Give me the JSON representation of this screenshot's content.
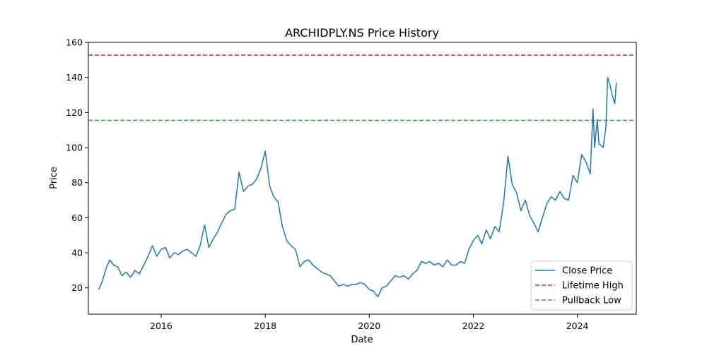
{
  "chart_data": {
    "type": "line",
    "title": "ARCHIDPLY.NS Price History",
    "xlabel": "Date",
    "ylabel": "Price",
    "xlim": [
      "2014-08-08",
      "2025-02-18"
    ],
    "ylim": [
      5,
      160
    ],
    "yticks": [
      20,
      40,
      60,
      80,
      100,
      120,
      140,
      160
    ],
    "xticks": [
      "2016",
      "2018",
      "2020",
      "2022",
      "2024"
    ],
    "grid": false,
    "legend_position": "lower-right",
    "series": [
      {
        "name": "Close Price",
        "color": "#1f77b4",
        "style": "solid",
        "x": [
          "2014-10-20",
          "2014-11-15",
          "2014-12-10",
          "2015-01-05",
          "2015-02-01",
          "2015-03-01",
          "2015-04-01",
          "2015-05-01",
          "2015-06-01",
          "2015-07-01",
          "2015-08-01",
          "2015-09-01",
          "2015-10-01",
          "2015-11-01",
          "2015-12-01",
          "2016-01-01",
          "2016-02-01",
          "2016-03-01",
          "2016-04-01",
          "2016-05-01",
          "2016-06-01",
          "2016-07-01",
          "2016-08-01",
          "2016-09-01",
          "2016-10-01",
          "2016-11-01",
          "2016-12-01",
          "2017-01-01",
          "2017-02-01",
          "2017-03-01",
          "2017-04-01",
          "2017-05-01",
          "2017-06-01",
          "2017-07-01",
          "2017-08-01",
          "2017-09-01",
          "2017-10-01",
          "2017-11-01",
          "2017-12-01",
          "2018-01-01",
          "2018-02-01",
          "2018-03-01",
          "2018-04-01",
          "2018-05-01",
          "2018-06-01",
          "2018-07-01",
          "2018-08-01",
          "2018-09-01",
          "2018-10-01",
          "2018-11-01",
          "2018-12-01",
          "2019-01-01",
          "2019-02-01",
          "2019-03-01",
          "2019-04-01",
          "2019-05-01",
          "2019-06-01",
          "2019-07-01",
          "2019-08-01",
          "2019-09-01",
          "2019-10-01",
          "2019-11-01",
          "2019-12-01",
          "2020-01-01",
          "2020-02-01",
          "2020-03-01",
          "2020-04-01",
          "2020-05-01",
          "2020-06-01",
          "2020-07-01",
          "2020-08-01",
          "2020-09-01",
          "2020-10-01",
          "2020-11-01",
          "2020-12-01",
          "2021-01-01",
          "2021-02-01",
          "2021-03-01",
          "2021-04-01",
          "2021-05-01",
          "2021-06-01",
          "2021-07-01",
          "2021-08-01",
          "2021-09-01",
          "2021-10-01",
          "2021-11-01",
          "2021-12-01",
          "2022-01-01",
          "2022-02-01",
          "2022-03-01",
          "2022-04-01",
          "2022-05-01",
          "2022-06-01",
          "2022-07-01",
          "2022-08-01",
          "2022-09-01",
          "2022-10-01",
          "2022-11-01",
          "2022-12-01",
          "2023-01-01",
          "2023-02-01",
          "2023-03-01",
          "2023-04-01",
          "2023-05-01",
          "2023-06-01",
          "2023-07-01",
          "2023-08-01",
          "2023-09-01",
          "2023-10-01",
          "2023-11-01",
          "2023-12-01",
          "2024-01-01",
          "2024-02-01",
          "2024-03-01",
          "2024-04-01",
          "2024-04-20",
          "2024-05-01",
          "2024-05-20",
          "2024-06-01",
          "2024-06-20",
          "2024-07-01",
          "2024-07-20",
          "2024-08-01",
          "2024-08-20",
          "2024-09-01",
          "2024-09-20",
          "2024-10-01"
        ],
        "y": [
          19,
          24,
          31,
          36,
          33,
          32,
          27,
          29,
          26,
          30,
          28,
          33,
          38,
          44,
          38,
          42,
          43,
          37,
          40,
          39,
          41,
          42,
          40,
          38,
          44,
          56,
          43,
          48,
          52,
          57,
          62,
          64,
          65,
          86,
          75,
          78,
          79,
          82,
          88,
          98,
          78,
          72,
          69,
          55,
          47,
          44,
          42,
          32,
          35,
          36,
          33,
          31,
          29,
          28,
          27,
          24,
          21,
          22,
          21,
          22,
          22,
          23,
          22,
          19,
          18,
          15,
          20,
          21,
          24,
          27,
          26,
          27,
          25,
          28,
          30,
          35,
          34,
          35,
          33,
          34,
          32,
          36,
          33,
          33,
          35,
          34,
          42,
          47,
          50,
          45,
          53,
          48,
          55,
          52,
          68,
          95,
          79,
          74,
          64,
          70,
          61,
          57,
          52,
          60,
          68,
          72,
          70,
          75,
          71,
          70,
          84,
          80,
          96,
          92,
          85,
          122,
          100,
          116,
          102,
          101,
          100,
          112,
          140,
          135,
          130,
          125,
          137
        ]
      },
      {
        "name": "Lifetime High",
        "color": "#d62728",
        "style": "dashed",
        "y_constant": 152.7
      },
      {
        "name": "Pullback Low",
        "color": "#2ca02c",
        "style": "dashed",
        "y_constant": 115.5
      }
    ]
  }
}
